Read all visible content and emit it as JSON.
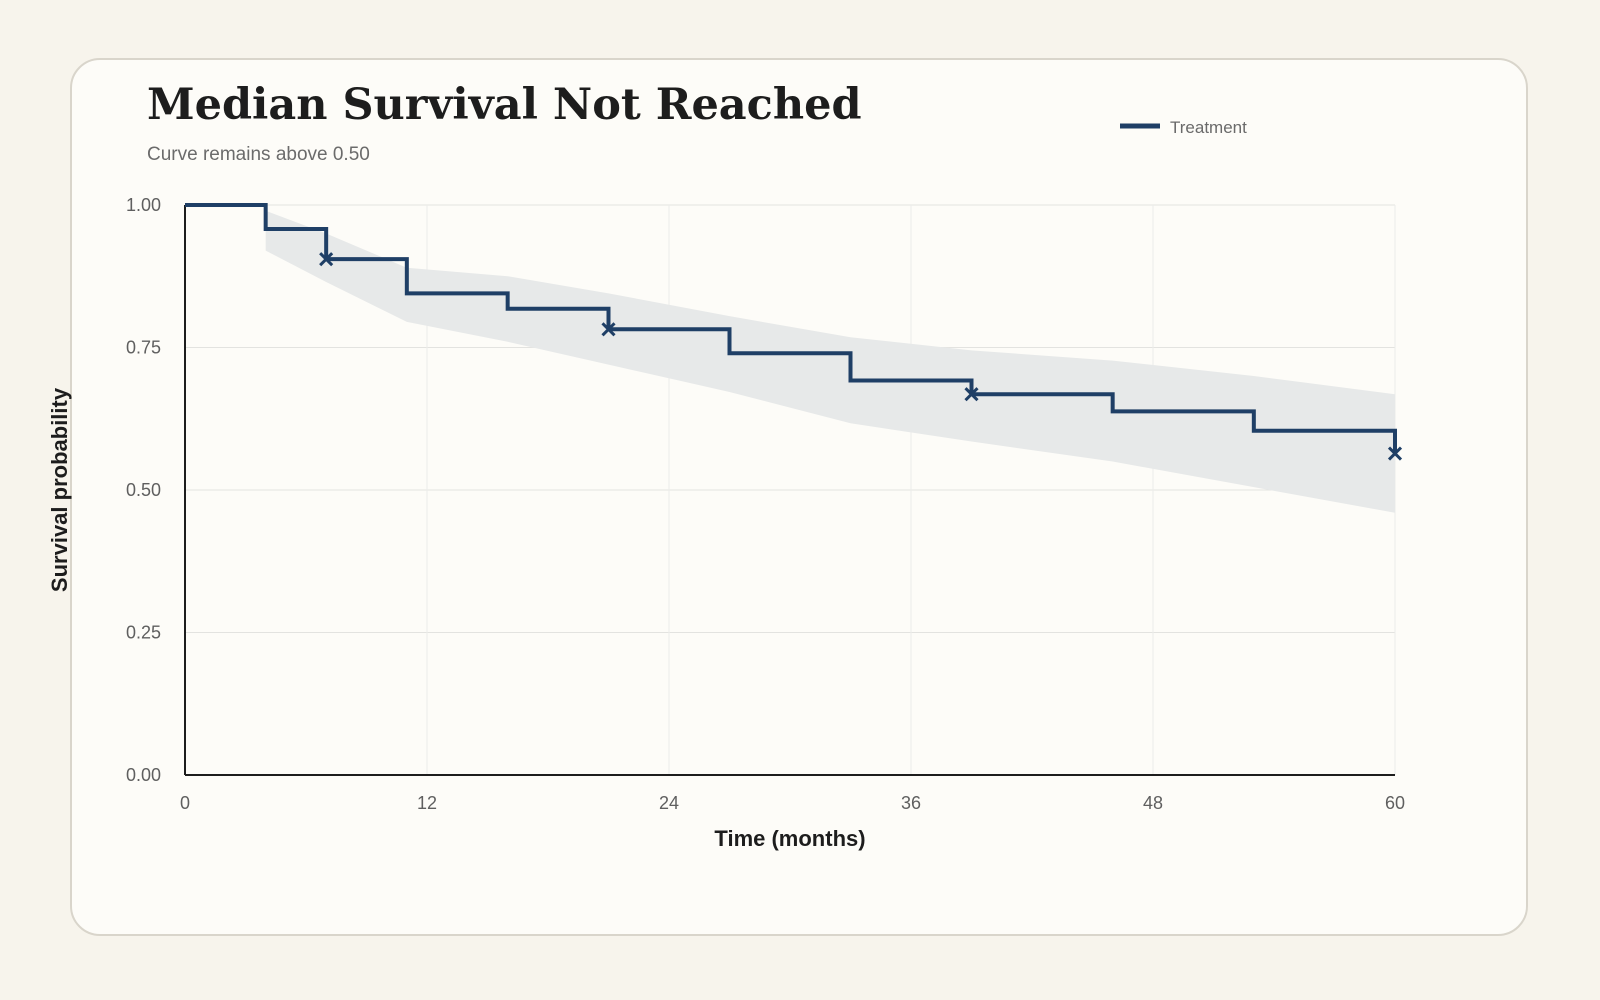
{
  "chart_data": {
    "type": "line",
    "title": "Median Survival Not Reached",
    "subtitle": "Curve remains above 0.50",
    "xlabel": "Time (months)",
    "ylabel": "Survival probability",
    "xlim": [
      0,
      60
    ],
    "ylim": [
      0,
      1
    ],
    "xticks": [
      "0",
      "12",
      "24",
      "36",
      "48",
      "60"
    ],
    "yticks": [
      "0.00",
      "0.25",
      "0.50",
      "0.75",
      "1.00"
    ],
    "grid": true,
    "legend_position": "top-right",
    "series": [
      {
        "name": "Treatment",
        "color": "#1f3f66",
        "step": {
          "t": [
            0,
            4,
            7,
            11,
            16,
            21,
            27,
            33,
            39,
            46,
            53,
            60
          ],
          "s": [
            1.0,
            0.958,
            0.905,
            0.845,
            0.818,
            0.782,
            0.74,
            0.692,
            0.668,
            0.638,
            0.604,
            0.564
          ]
        },
        "censored": [
          {
            "t": 7,
            "s": 0.905
          },
          {
            "t": 21,
            "s": 0.782
          },
          {
            "t": 39,
            "s": 0.668
          },
          {
            "t": 60,
            "s": 0.564
          }
        ],
        "ci": {
          "t": [
            4,
            7,
            11,
            16,
            21,
            27,
            33,
            39,
            46,
            53,
            60
          ],
          "upper": [
            0.99,
            0.95,
            0.89,
            0.875,
            0.845,
            0.805,
            0.768,
            0.745,
            0.727,
            0.7,
            0.668
          ],
          "lower": [
            0.92,
            0.865,
            0.795,
            0.76,
            0.72,
            0.672,
            0.617,
            0.585,
            0.55,
            0.505,
            0.46
          ],
          "color": "#e7e9e9"
        }
      }
    ]
  }
}
